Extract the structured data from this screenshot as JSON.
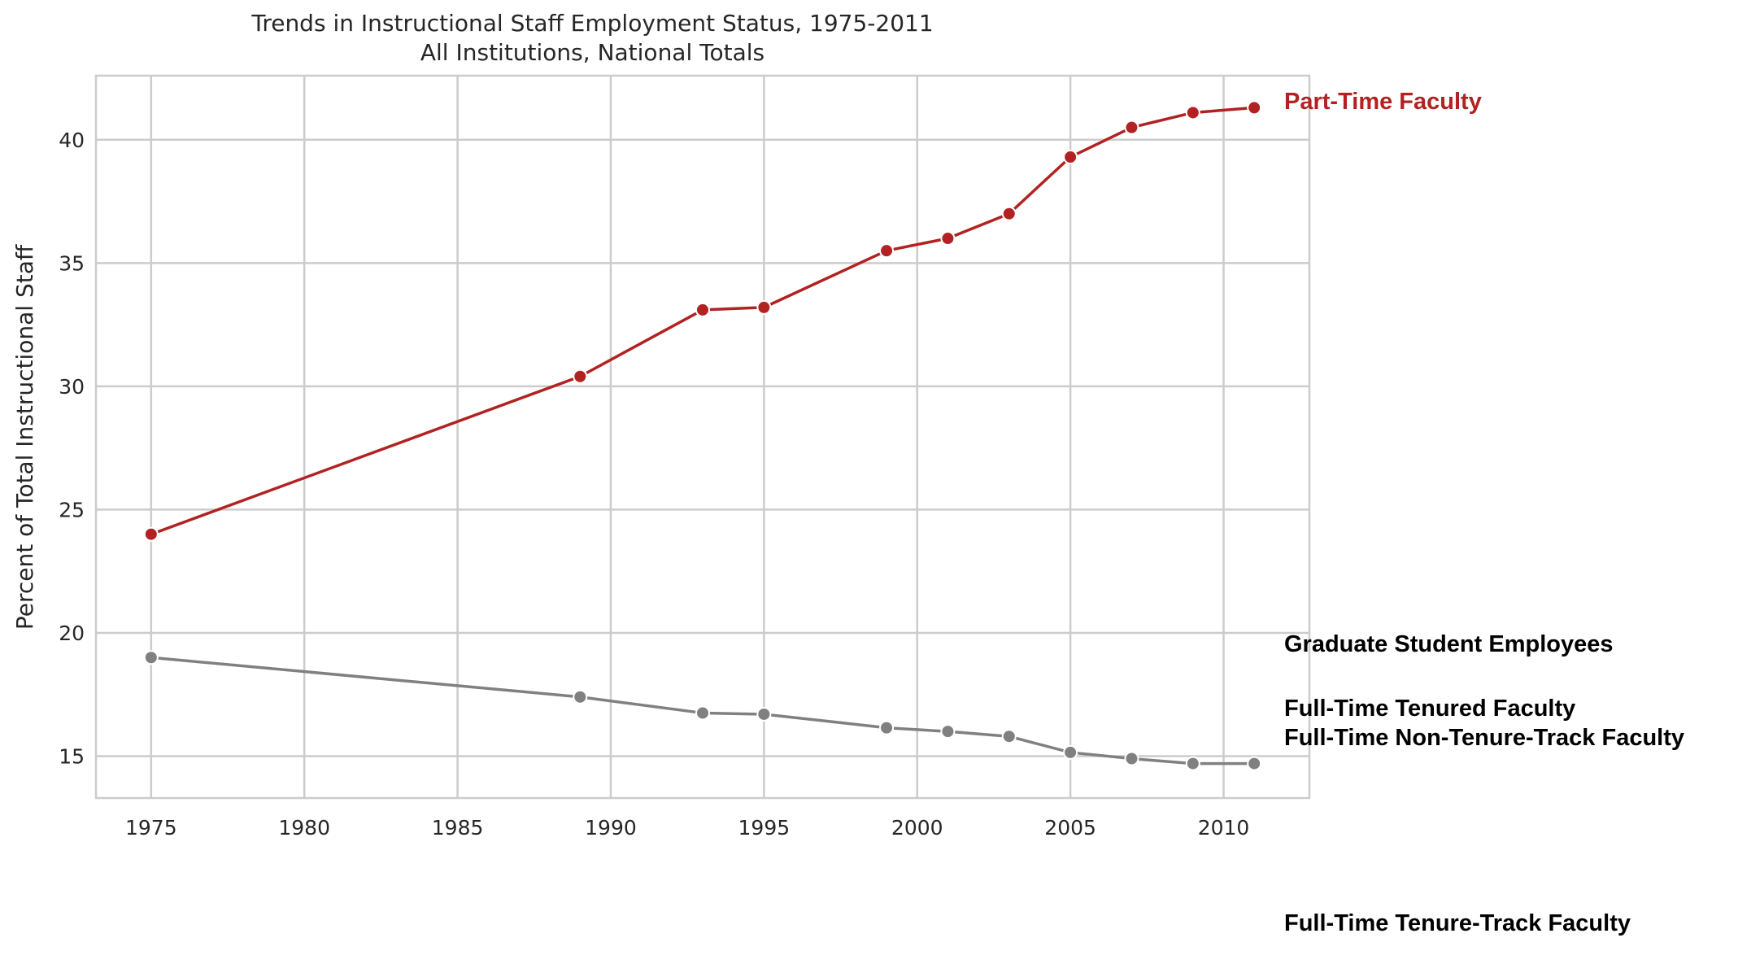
{
  "chart_data": {
    "type": "line",
    "title": "Trends in Instructional Staff Employment Status, 1975-2011",
    "subtitle": "All Institutions, National Totals",
    "xlabel": "",
    "ylabel": "Percent of Total Instructional Staff",
    "xlim": [
      1973.2,
      2012.8
    ],
    "ylim": [
      13.3,
      42.6
    ],
    "xticks": [
      1975,
      1980,
      1985,
      1990,
      1995,
      2000,
      2005,
      2010
    ],
    "yticks": [
      15,
      20,
      25,
      30,
      35,
      40
    ],
    "grid": true,
    "x": [
      1975,
      1989,
      1993,
      1995,
      1999,
      2001,
      2003,
      2005,
      2007,
      2009,
      2011
    ],
    "series": [
      {
        "name": "Part-Time Faculty",
        "color": "#b22222",
        "values": [
          24.0,
          30.4,
          33.1,
          33.2,
          35.5,
          36.0,
          37.0,
          39.3,
          40.5,
          41.1,
          41.3
        ]
      },
      {
        "color": "#808080",
        "values": [
          19.0,
          17.4,
          16.75,
          16.7,
          16.15,
          16.0,
          15.8,
          15.15,
          14.9,
          14.7,
          14.7
        ]
      }
    ],
    "annotations": [
      {
        "text": "Part-Time Faculty",
        "color": "#b22222",
        "y": 41.5
      },
      {
        "text": "Graduate Student Employees",
        "color": "#000000",
        "y": 19.5
      },
      {
        "text": "Full-Time Tenured Faculty",
        "color": "#000000",
        "y": 16.9
      },
      {
        "text": "Full-Time Non-Tenure-Track Faculty",
        "color": "#000000",
        "y": 15.7
      },
      {
        "text": "Full-Time Tenure-Track Faculty",
        "color": "#000000",
        "y": 8.2
      }
    ]
  }
}
